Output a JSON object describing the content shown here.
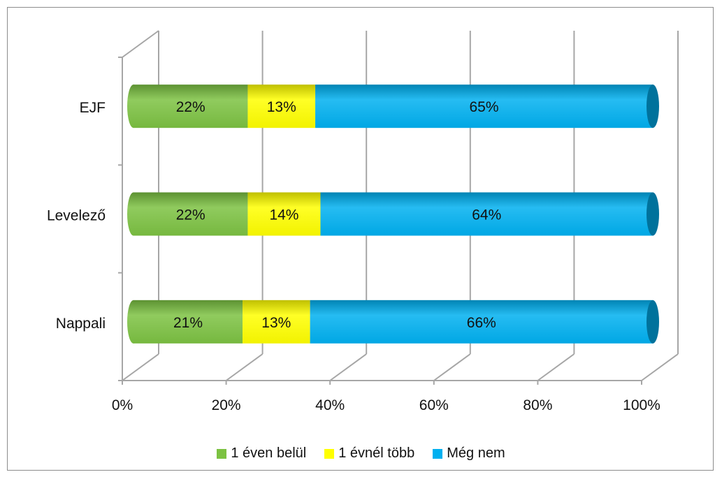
{
  "chart_data": {
    "type": "bar",
    "orientation": "horizontal",
    "stacked": "percent",
    "title": "",
    "xlabel": "",
    "ylabel": "",
    "categories": [
      "Nappali",
      "Levelező",
      "EJF"
    ],
    "series": [
      {
        "name": "1 éven belül",
        "values": [
          21,
          22,
          22
        ],
        "labels": [
          "21%",
          "22%",
          "22%"
        ],
        "color": "#7cc242"
      },
      {
        "name": "1 évnél több",
        "values": [
          13,
          14,
          13
        ],
        "labels": [
          "13%",
          "14%",
          "13%"
        ],
        "color": "#ffff00"
      },
      {
        "name": "Még nem",
        "values": [
          66,
          64,
          65
        ],
        "labels": [
          "66%",
          "64%",
          "65%"
        ],
        "color": "#00b0f0"
      }
    ],
    "xlim": [
      0,
      100
    ],
    "x_ticks": [
      "0%",
      "20%",
      "40%",
      "60%",
      "80%",
      "100%"
    ],
    "grid": true,
    "legend_position": "bottom",
    "style": "3d-cylinder"
  }
}
